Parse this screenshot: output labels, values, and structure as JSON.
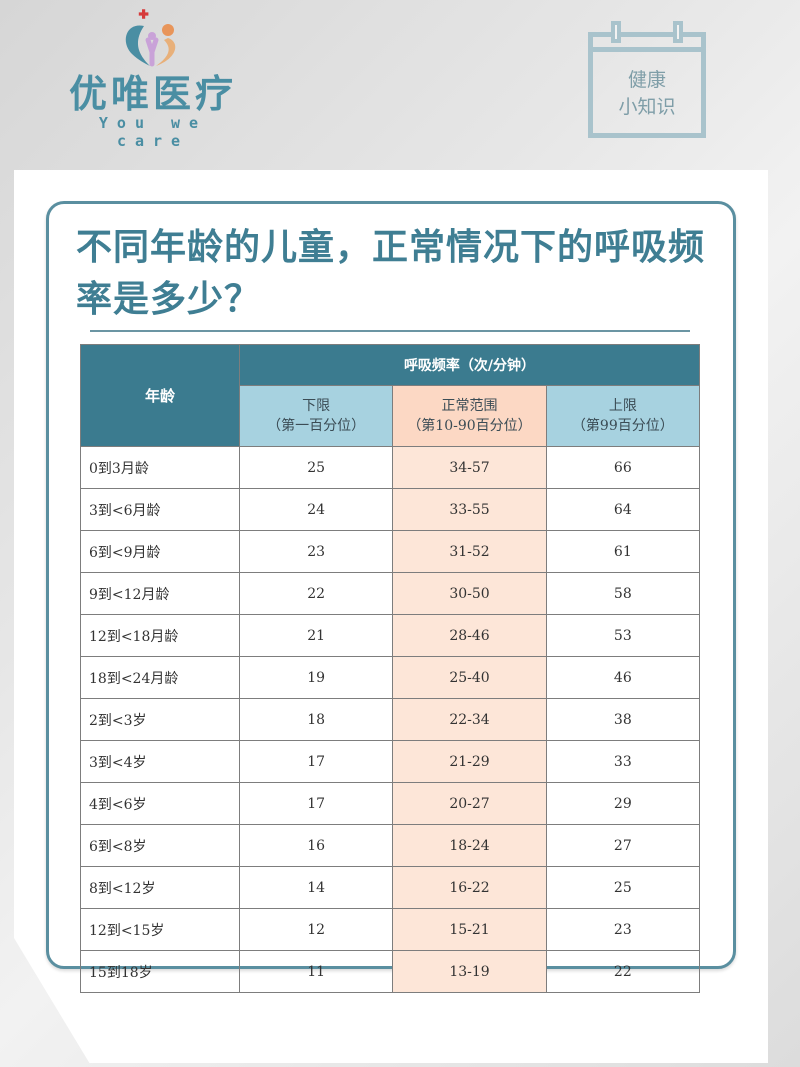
{
  "brand": {
    "name_cn": "优唯医疗",
    "name_en": "You we care",
    "colors": {
      "primary": "#4a8ea3",
      "logo_orange": "#e8955a",
      "logo_purple": "#c9a2d8",
      "cross_red": "#d63a3a"
    }
  },
  "badge": {
    "line1": "健康",
    "line2": "小知识",
    "icon": "calendar-icon"
  },
  "article": {
    "title": "不同年龄的儿童，正常情况下的呼吸频率是多少？"
  },
  "table": {
    "age_header": "年龄",
    "group_header": "呼吸频率（次/分钟）",
    "columns": [
      {
        "label": "下限",
        "sub": "（第一百分位）"
      },
      {
        "label": "正常范围",
        "sub": "（第10-90百分位）"
      },
      {
        "label": "上限",
        "sub": "（第99百分位）"
      }
    ],
    "rows": [
      {
        "age": "0到3月龄",
        "low": "25",
        "normal": "34-57",
        "high": "66"
      },
      {
        "age": "3到<6月龄",
        "low": "24",
        "normal": "33-55",
        "high": "64"
      },
      {
        "age": "6到<9月龄",
        "low": "23",
        "normal": "31-52",
        "high": "61"
      },
      {
        "age": "9到<12月龄",
        "low": "22",
        "normal": "30-50",
        "high": "58"
      },
      {
        "age": "12到<18月龄",
        "low": "21",
        "normal": "28-46",
        "high": "53"
      },
      {
        "age": "18到<24月龄",
        "low": "19",
        "normal": "25-40",
        "high": "46"
      },
      {
        "age": "2到<3岁",
        "low": "18",
        "normal": "22-34",
        "high": "38"
      },
      {
        "age": "3到<4岁",
        "low": "17",
        "normal": "21-29",
        "high": "33"
      },
      {
        "age": "4到<6岁",
        "low": "17",
        "normal": "20-27",
        "high": "29"
      },
      {
        "age": "6到<8岁",
        "low": "16",
        "normal": "18-24",
        "high": "27"
      },
      {
        "age": "8到<12岁",
        "low": "14",
        "normal": "16-22",
        "high": "25"
      },
      {
        "age": "12到<15岁",
        "low": "12",
        "normal": "15-21",
        "high": "23"
      },
      {
        "age": "15到18岁",
        "low": "11",
        "normal": "13-19",
        "high": "22"
      }
    ]
  }
}
